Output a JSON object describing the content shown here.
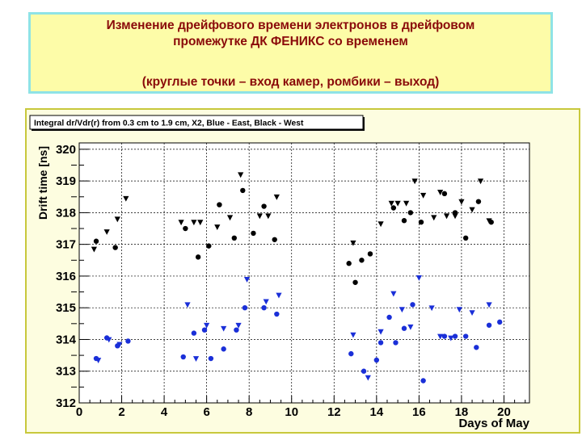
{
  "slide": {
    "title_line1": "Изменение дрейфового времени электронов в дрейфовом",
    "title_line2": "промежутке ДК ФЕНИКС со временем",
    "title_line3": "(круглые точки – вход камер, ромбики – выход)"
  },
  "colors": {
    "title_text": "#8a0a0a",
    "title_bg": "#fdfca8",
    "title_border": "#8fe3e6",
    "plot_bg": "#fdfde0",
    "frame_border": "#c8c83c",
    "east": "#1a2fd8",
    "west": "#000000"
  },
  "chart_data": {
    "type": "scatter",
    "title": "Integral dr/Vdr(r) from 0.3 cm to 1.9 cm, X2, Blue - East, Black - West",
    "xlabel": "Days of May",
    "ylabel": "Drift time [ns]",
    "xlim": [
      0,
      21.2
    ],
    "ylim": [
      312,
      320.2
    ],
    "xticks": [
      0,
      2,
      4,
      6,
      8,
      10,
      12,
      14,
      16,
      18,
      20
    ],
    "yticks": [
      312,
      313,
      314,
      315,
      316,
      317,
      318,
      319,
      320
    ],
    "grid": true,
    "series": [
      {
        "name": "West (black) – entrance",
        "color": "#000000",
        "marker": "circle",
        "points": [
          [
            0.8,
            317.1
          ],
          [
            1.7,
            316.9
          ],
          [
            5.0,
            317.5
          ],
          [
            5.6,
            316.6
          ],
          [
            6.1,
            316.95
          ],
          [
            6.6,
            318.25
          ],
          [
            7.3,
            317.2
          ],
          [
            7.7,
            318.7
          ],
          [
            8.2,
            317.35
          ],
          [
            8.7,
            318.2
          ],
          [
            9.2,
            317.15
          ],
          [
            12.7,
            316.4
          ],
          [
            13.0,
            315.8
          ],
          [
            13.3,
            316.5
          ],
          [
            13.7,
            316.7
          ],
          [
            14.8,
            318.15
          ],
          [
            15.3,
            317.75
          ],
          [
            15.6,
            318.0
          ],
          [
            16.1,
            317.7
          ],
          [
            17.2,
            318.6
          ],
          [
            17.7,
            318.0
          ],
          [
            18.2,
            317.2
          ],
          [
            18.8,
            318.35
          ],
          [
            19.4,
            317.7
          ]
        ]
      },
      {
        "name": "West (black) – exit",
        "color": "#000000",
        "marker": "triangle",
        "points": [
          [
            0.7,
            316.85
          ],
          [
            1.3,
            317.4
          ],
          [
            1.8,
            317.8
          ],
          [
            2.2,
            318.45
          ],
          [
            4.8,
            317.7
          ],
          [
            5.4,
            317.7
          ],
          [
            5.7,
            317.7
          ],
          [
            6.5,
            317.55
          ],
          [
            7.1,
            317.85
          ],
          [
            7.6,
            319.2
          ],
          [
            8.5,
            317.9
          ],
          [
            8.9,
            317.9
          ],
          [
            9.3,
            318.5
          ],
          [
            12.9,
            317.05
          ],
          [
            14.2,
            317.65
          ],
          [
            14.7,
            318.3
          ],
          [
            15.0,
            318.3
          ],
          [
            15.4,
            318.3
          ],
          [
            15.8,
            319.0
          ],
          [
            16.2,
            318.55
          ],
          [
            16.7,
            317.85
          ],
          [
            17.0,
            318.65
          ],
          [
            17.3,
            317.9
          ],
          [
            17.7,
            317.9
          ],
          [
            18.0,
            318.35
          ],
          [
            18.5,
            318.1
          ],
          [
            18.9,
            319.0
          ],
          [
            19.3,
            317.75
          ]
        ]
      },
      {
        "name": "East (blue) – entrance",
        "color": "#1a2fd8",
        "marker": "circle",
        "points": [
          [
            0.8,
            313.4
          ],
          [
            1.3,
            314.05
          ],
          [
            1.8,
            313.8
          ],
          [
            2.3,
            313.95
          ],
          [
            4.9,
            313.45
          ],
          [
            5.4,
            314.2
          ],
          [
            5.9,
            314.3
          ],
          [
            6.2,
            313.4
          ],
          [
            6.8,
            313.7
          ],
          [
            7.4,
            314.3
          ],
          [
            7.8,
            315.0
          ],
          [
            8.7,
            315.0
          ],
          [
            9.3,
            314.8
          ],
          [
            12.8,
            313.55
          ],
          [
            13.4,
            313.0
          ],
          [
            14.0,
            313.35
          ],
          [
            14.2,
            313.9
          ],
          [
            14.6,
            314.7
          ],
          [
            14.9,
            313.9
          ],
          [
            15.3,
            314.35
          ],
          [
            15.7,
            315.1
          ],
          [
            16.2,
            312.7
          ],
          [
            17.2,
            314.1
          ],
          [
            17.7,
            314.1
          ],
          [
            18.2,
            314.1
          ],
          [
            18.7,
            313.75
          ],
          [
            19.3,
            314.45
          ],
          [
            19.8,
            314.55
          ]
        ]
      },
      {
        "name": "East (blue) – exit",
        "color": "#1a2fd8",
        "marker": "triangle",
        "points": [
          [
            0.9,
            313.35
          ],
          [
            1.4,
            314.0
          ],
          [
            1.9,
            313.85
          ],
          [
            5.1,
            315.1
          ],
          [
            5.5,
            313.4
          ],
          [
            6.0,
            314.45
          ],
          [
            6.8,
            314.35
          ],
          [
            7.5,
            314.45
          ],
          [
            7.9,
            315.9
          ],
          [
            8.8,
            315.2
          ],
          [
            9.4,
            315.4
          ],
          [
            12.9,
            314.15
          ],
          [
            13.6,
            312.8
          ],
          [
            14.2,
            314.25
          ],
          [
            14.8,
            315.45
          ],
          [
            15.2,
            314.95
          ],
          [
            15.6,
            314.4
          ],
          [
            16.0,
            315.95
          ],
          [
            16.6,
            315.0
          ],
          [
            17.0,
            314.1
          ],
          [
            17.5,
            314.05
          ],
          [
            17.9,
            314.95
          ],
          [
            18.5,
            314.85
          ],
          [
            19.3,
            315.1
          ]
        ]
      }
    ]
  }
}
